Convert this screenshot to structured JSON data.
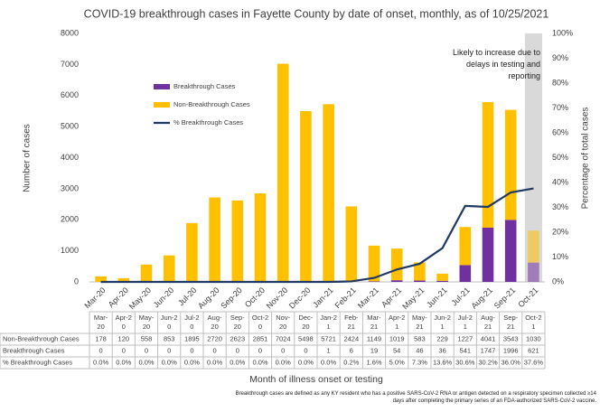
{
  "chart_data": {
    "type": "bar",
    "title": "COVID-19 breakthrough cases in Fayette County by date of onset, monthly, as of 10/25/2021",
    "x_label": "Month of illness onset or testing",
    "y_label": "Number of cases",
    "y2_label": "Percentage of total cases",
    "annotation": "Likely to increase due to delays in testing and reporting",
    "footnote": "Breakthrough cases are defined as any KY resident who has a positive SARS-CoV-2 RNA or antigen detected on a respiratory specimen collected ≥14 days after completing the primary series of an FDA-authorized SARS-CoV-2 vaccine.",
    "categories": [
      "Mar-20",
      "Apr-20",
      "May-20",
      "Jun-20",
      "Jul-20",
      "Aug-20",
      "Sep-20",
      "Oct-20",
      "Nov-20",
      "Dec-20",
      "Jan-21",
      "Feb-21",
      "Mar-21",
      "Apr-21",
      "May-21",
      "Jun-21",
      "Jul-21",
      "Aug-21",
      "Sep-21",
      "Oct-21"
    ],
    "series": [
      {
        "name": "Non-Breakthrough Cases",
        "color": "#ffc000",
        "values": [
          178,
          120,
          558,
          853,
          1895,
          2720,
          2623,
          2851,
          7024,
          5498,
          5721,
          2424,
          1149,
          1019,
          583,
          229,
          1227,
          4041,
          3543,
          1030
        ]
      },
      {
        "name": "Breakthrough Cases",
        "color": "#7030a0",
        "values": [
          0,
          0,
          0,
          0,
          0,
          0,
          0,
          0,
          0,
          0,
          1,
          6,
          19,
          54,
          46,
          36,
          541,
          1747,
          1996,
          621
        ]
      },
      {
        "name": "% Breakthrough Cases",
        "color": "#1f3864",
        "axis": "y2",
        "type": "line",
        "values": [
          0,
          0,
          0,
          0,
          0,
          0,
          0,
          0,
          0,
          0,
          0,
          0.2,
          1.6,
          5.0,
          7.3,
          13.6,
          30.6,
          30.2,
          36.0,
          37.6
        ],
        "value_labels": [
          "0.0%",
          "0.0%",
          "0.0%",
          "0.0%",
          "0.0%",
          "0.0%",
          "0.0%",
          "0.0%",
          "0.0%",
          "0.0%",
          "0.0%",
          "0.2%",
          "1.6%",
          "5.0%",
          "7.3%",
          "13.6%",
          "30.6%",
          "30.2%",
          "36.0%",
          "37.6%"
        ]
      }
    ],
    "ylim": [
      0,
      8000
    ],
    "yticks": [
      0,
      1000,
      2000,
      3000,
      4000,
      5000,
      6000,
      7000,
      8000
    ],
    "y2lim": [
      0,
      100
    ],
    "y2ticks": [
      {
        "value": 0,
        "label": "0%"
      },
      {
        "value": 10,
        "label": "10%"
      },
      {
        "value": 20,
        "label": "20%"
      },
      {
        "value": 30,
        "label": "30%"
      },
      {
        "value": 40,
        "label": "40%"
      },
      {
        "value": 50,
        "label": "50%"
      },
      {
        "value": 60,
        "label": "60%"
      },
      {
        "value": 70,
        "label": "70%"
      },
      {
        "value": 80,
        "label": "80%"
      },
      {
        "value": 90,
        "label": "90%"
      },
      {
        "value": 100,
        "label": "100%"
      }
    ]
  }
}
